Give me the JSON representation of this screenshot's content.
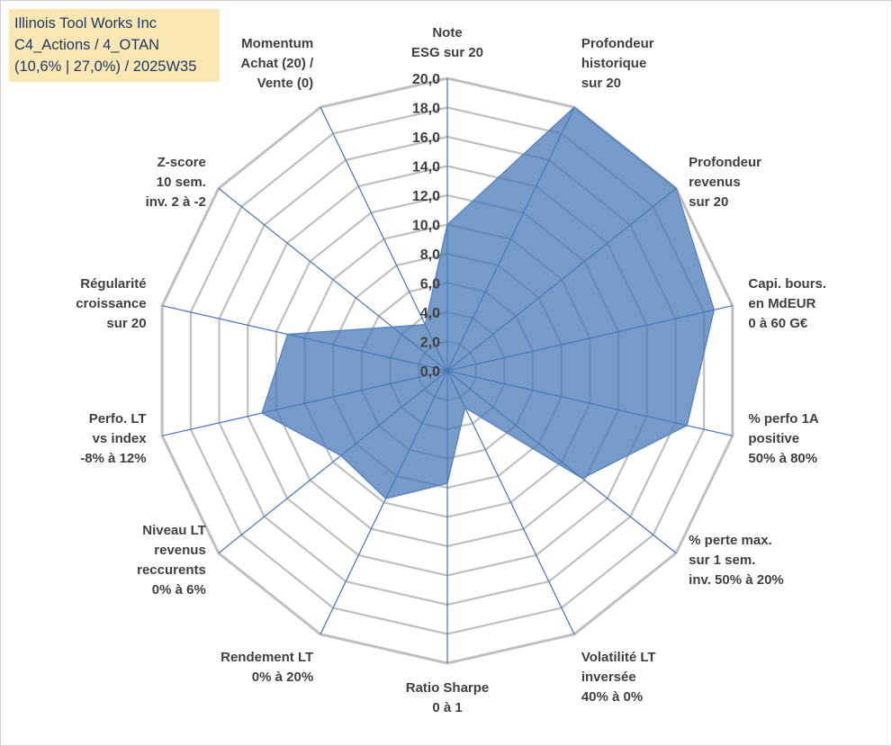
{
  "title_box": {
    "line1": "Illinois Tool Works Inc",
    "line2": "C4_Actions / 4_OTAN",
    "line3": "(10,6% | 27,0%) / 2025W35"
  },
  "colors": {
    "fill": "#4a7ab5",
    "stroke": "#5b86c0",
    "grid": "#bfbfbf",
    "spoke": "#4472c4",
    "title_bg": "#fbe7b3",
    "title_text": "#1f3864",
    "label_text": "#404040"
  },
  "chart_data": {
    "type": "radar",
    "title": "",
    "rmin": 0,
    "rmax": 20,
    "ticks": [
      "0,0",
      "2,0",
      "4,0",
      "6,0",
      "8,0",
      "10,0",
      "12,0",
      "14,0",
      "16,0",
      "18,0",
      "20,0"
    ],
    "grid": true,
    "axes": [
      {
        "label": [
          "Note",
          "ESG sur 20"
        ],
        "value": 10.0
      },
      {
        "label": [
          "Profondeur",
          "historique",
          "sur 20"
        ],
        "value": 20.0
      },
      {
        "label": [
          "Profondeur",
          "revenus",
          "sur 20"
        ],
        "value": 20.0
      },
      {
        "label": [
          "Capi. bours.",
          "en MdEUR",
          "0 à 60 G€"
        ],
        "value": 18.7
      },
      {
        "label": [
          "% perfo 1A",
          "positive",
          "50% à 80%"
        ],
        "value": 16.8
      },
      {
        "label": [
          "% perte max.",
          "sur 1 sem.",
          "inv. 50% à 20%"
        ],
        "value": 11.8
      },
      {
        "label": [
          "Volatilité LT",
          "inversée",
          "40% à 0%"
        ],
        "value": 2.8
      },
      {
        "label": [
          "Ratio Sharpe",
          "0 à 1"
        ],
        "value": 7.7
      },
      {
        "label": [
          "Rendement LT",
          "0% à 20%"
        ],
        "value": 9.7
      },
      {
        "label": [
          "Niveau LT",
          "revenus",
          "reccurents",
          "0% à 6%"
        ],
        "value": 9.3
      },
      {
        "label": [
          "Perfo. LT",
          "vs index",
          "-8% à 12%"
        ],
        "value": 13.0
      },
      {
        "label": [
          "Régularité",
          "croissance",
          "sur 20"
        ],
        "value": 11.2
      },
      {
        "label": [
          "Z-score",
          "10 sem.",
          "inv. 2 à -2"
        ],
        "value": 4.8
      },
      {
        "label": [
          "Momentum",
          "Achat (20) /",
          "Vente (0)"
        ],
        "value": 3.5
      }
    ]
  }
}
